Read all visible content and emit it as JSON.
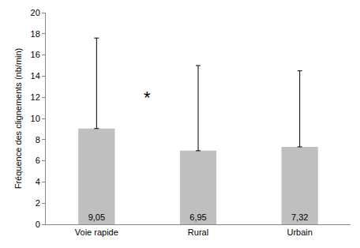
{
  "chart_data": {
    "type": "bar",
    "y_label": "Fréquence des clignements (nb/min)",
    "categories": [
      "Voie rapide",
      "Rural",
      "Urbain"
    ],
    "values": [
      9.05,
      6.95,
      7.32
    ],
    "value_labels": [
      "9,05",
      "6,95",
      "7,32"
    ],
    "errors": [
      8.55,
      8.05,
      7.18
    ],
    "color": "#bfbfbf",
    "data_labels": true,
    "grid": false,
    "ylim": [
      0,
      20
    ],
    "yticks": [
      0,
      2,
      4,
      6,
      8,
      10,
      12,
      14,
      16,
      18,
      20
    ],
    "annotations": [
      {
        "text": "*"
      }
    ]
  }
}
